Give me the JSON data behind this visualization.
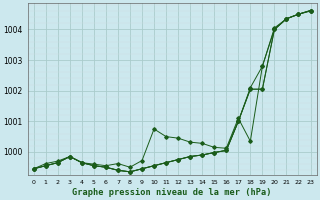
{
  "bg_color": "#cce8ee",
  "grid_color_major": "#aacccc",
  "grid_color_minor": "#ccdde0",
  "line_color": "#1a5c1a",
  "title": "Graphe pression niveau de la mer (hPa)",
  "xlim": [
    -0.5,
    23.5
  ],
  "ylim": [
    999.25,
    1004.85
  ],
  "yticks": [
    1000,
    1001,
    1002,
    1003,
    1004
  ],
  "xticks": [
    0,
    1,
    2,
    3,
    4,
    5,
    6,
    7,
    8,
    9,
    10,
    11,
    12,
    13,
    14,
    15,
    16,
    17,
    18,
    19,
    20,
    21,
    22,
    23
  ],
  "series": {
    "line_zigzag": [
      999.45,
      999.62,
      999.7,
      999.85,
      999.65,
      999.6,
      999.55,
      999.62,
      999.5,
      999.72,
      1000.75,
      1000.5,
      1000.45,
      1000.32,
      1000.28,
      1000.15,
      1000.12,
      1001.1,
      1000.35,
      1002.8,
      1004.05,
      1004.35,
      1004.5,
      1004.6
    ],
    "line_smooth1": [
      999.45,
      999.62,
      999.7,
      999.85,
      999.65,
      999.6,
      999.55,
      999.45,
      999.35,
      999.5,
      999.65,
      999.78,
      999.88,
      999.97,
      1000.05,
      1000.12,
      1000.18,
      1001.05,
      1000.35,
      1002.8,
      1004.05,
      1004.35,
      1004.5,
      1004.6
    ],
    "line_smooth2": [
      999.45,
      999.62,
      999.7,
      999.85,
      999.65,
      999.6,
      999.55,
      999.45,
      999.35,
      999.5,
      999.65,
      999.78,
      999.88,
      999.97,
      1000.05,
      1000.12,
      1000.18,
      1001.05,
      1000.35,
      1002.1,
      1004.05,
      1004.35,
      1004.5,
      1004.6
    ],
    "line_smooth3": [
      999.45,
      999.62,
      999.7,
      999.85,
      999.65,
      999.6,
      999.55,
      999.45,
      999.35,
      999.5,
      999.65,
      999.78,
      999.88,
      999.97,
      1000.05,
      1000.12,
      1000.18,
      1001.05,
      1000.35,
      1002.1,
      1004.05,
      1004.35,
      1004.5,
      1004.6
    ]
  }
}
